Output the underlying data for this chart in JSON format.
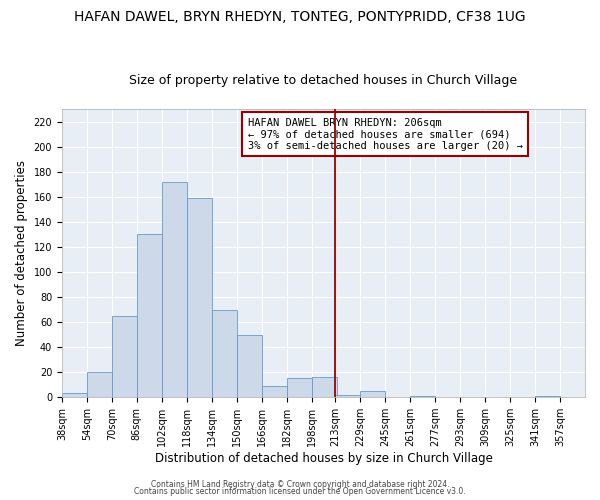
{
  "title": "HAFAN DAWEL, BRYN RHEDYN, TONTEG, PONTYPRIDD, CF38 1UG",
  "subtitle": "Size of property relative to detached houses in Church Village",
  "xlabel": "Distribution of detached houses by size in Church Village",
  "ylabel": "Number of detached properties",
  "bar_left_edges": [
    38,
    54,
    70,
    86,
    102,
    118,
    134,
    150,
    166,
    182,
    198,
    213,
    229,
    245,
    261,
    277,
    293,
    309,
    325,
    341
  ],
  "bar_heights": [
    3,
    20,
    65,
    130,
    172,
    159,
    70,
    50,
    9,
    15,
    16,
    2,
    5,
    0,
    1,
    0,
    0,
    0,
    0,
    1
  ],
  "bin_width": 16,
  "bar_color": "#cdd9e8",
  "bar_edge_color": "#6699cc",
  "vline_x": 213,
  "vline_color": "#990000",
  "ylim": [
    0,
    230
  ],
  "yticks": [
    0,
    20,
    40,
    60,
    80,
    100,
    120,
    140,
    160,
    180,
    200,
    220
  ],
  "xtick_labels": [
    "38sqm",
    "54sqm",
    "70sqm",
    "86sqm",
    "102sqm",
    "118sqm",
    "134sqm",
    "150sqm",
    "166sqm",
    "182sqm",
    "198sqm",
    "213sqm",
    "229sqm",
    "245sqm",
    "261sqm",
    "277sqm",
    "293sqm",
    "309sqm",
    "325sqm",
    "341sqm",
    "357sqm"
  ],
  "annotation_box_text": "HAFAN DAWEL BRYN RHEDYN: 206sqm\n← 97% of detached houses are smaller (694)\n3% of semi-detached houses are larger (20) →",
  "footer_line1": "Contains HM Land Registry data © Crown copyright and database right 2024.",
  "footer_line2": "Contains public sector information licensed under the Open Government Licence v3.0.",
  "background_color": "#ffffff",
  "plot_bg_color": "#e8eef5",
  "grid_color": "#ffffff",
  "title_fontsize": 10,
  "subtitle_fontsize": 9,
  "tick_label_fontsize": 7,
  "ylabel_fontsize": 8.5,
  "xlabel_fontsize": 8.5,
  "annotation_fontsize": 7.5,
  "footer_fontsize": 5.5
}
